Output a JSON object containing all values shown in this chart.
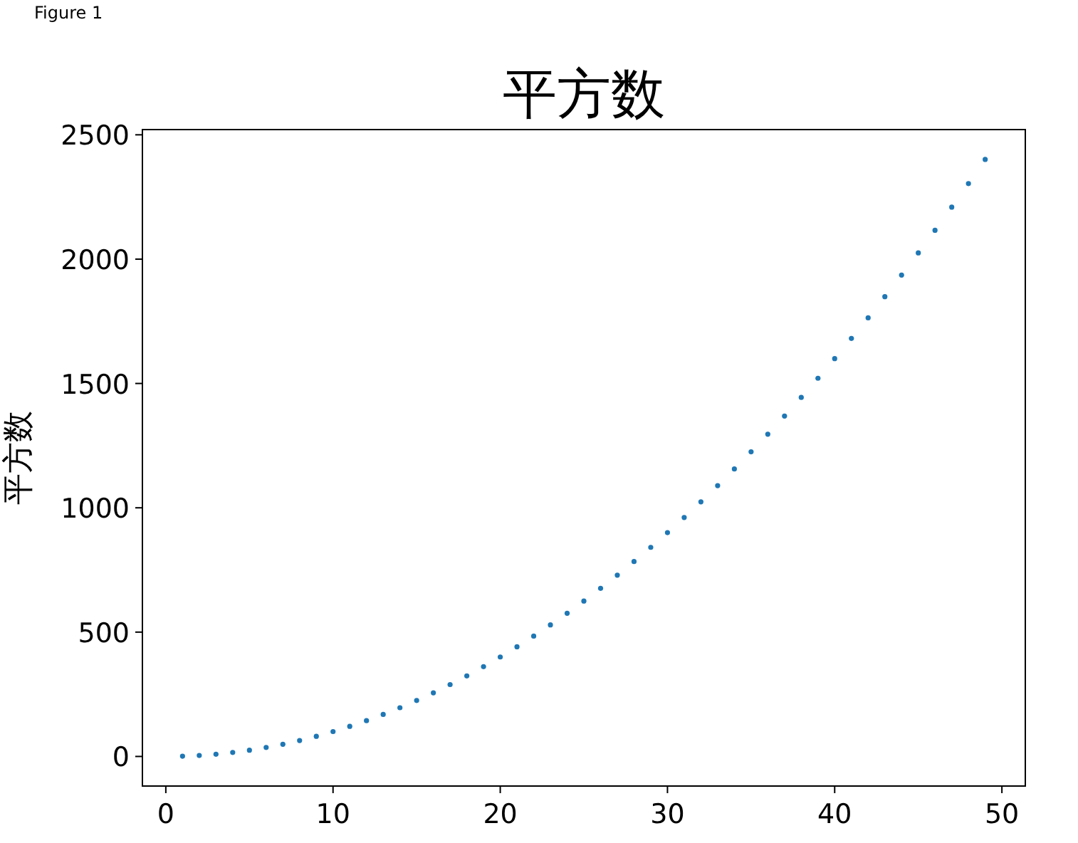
{
  "chart_data": {
    "type": "scatter",
    "title": "平方数",
    "ylabel": "平方数",
    "annotations": [
      "Figure 1"
    ],
    "x": [
      1,
      2,
      3,
      4,
      5,
      6,
      7,
      8,
      9,
      10,
      11,
      12,
      13,
      14,
      15,
      16,
      17,
      18,
      19,
      20,
      21,
      22,
      23,
      24,
      25,
      26,
      27,
      28,
      29,
      30,
      31,
      32,
      33,
      34,
      35,
      36,
      37,
      38,
      39,
      40,
      41,
      42,
      43,
      44,
      45,
      46,
      47,
      48,
      49
    ],
    "series": [
      {
        "color": "#1f77b4",
        "values": [
          1,
          4,
          9,
          16,
          25,
          36,
          49,
          64,
          81,
          100,
          121,
          144,
          169,
          196,
          225,
          256,
          289,
          324,
          361,
          400,
          441,
          484,
          529,
          576,
          625,
          676,
          729,
          784,
          841,
          900,
          961,
          1024,
          1089,
          1156,
          1225,
          1296,
          1369,
          1444,
          1521,
          1600,
          1681,
          1764,
          1849,
          1936,
          2025,
          2116,
          2209,
          2304,
          2401
        ]
      }
    ],
    "xlim": [
      -1.4,
      51.4
    ],
    "ylim": [
      -119,
      2521
    ],
    "xticks": [
      0,
      10,
      20,
      30,
      40,
      50
    ],
    "yticks": [
      0,
      500,
      1000,
      1500,
      2000,
      2500
    ],
    "marker": "circle",
    "grid": false
  }
}
